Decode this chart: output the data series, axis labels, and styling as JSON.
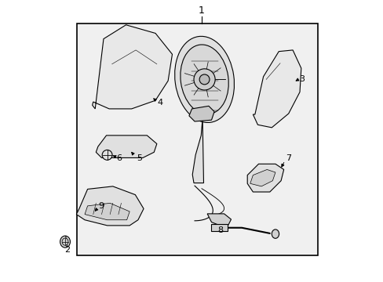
{
  "background_color": "#ffffff",
  "line_color": "#000000",
  "fig_width": 4.89,
  "fig_height": 3.6,
  "dpi": 100,
  "box_bg": "#f0f0f0",
  "part_fill": "#e8e8e8",
  "part_fill2": "#e0e0e0",
  "part_fill3": "#d8d8d8",
  "part_fill4": "#d0d0d0",
  "label_fontsize": 8,
  "label1_fontsize": 9
}
